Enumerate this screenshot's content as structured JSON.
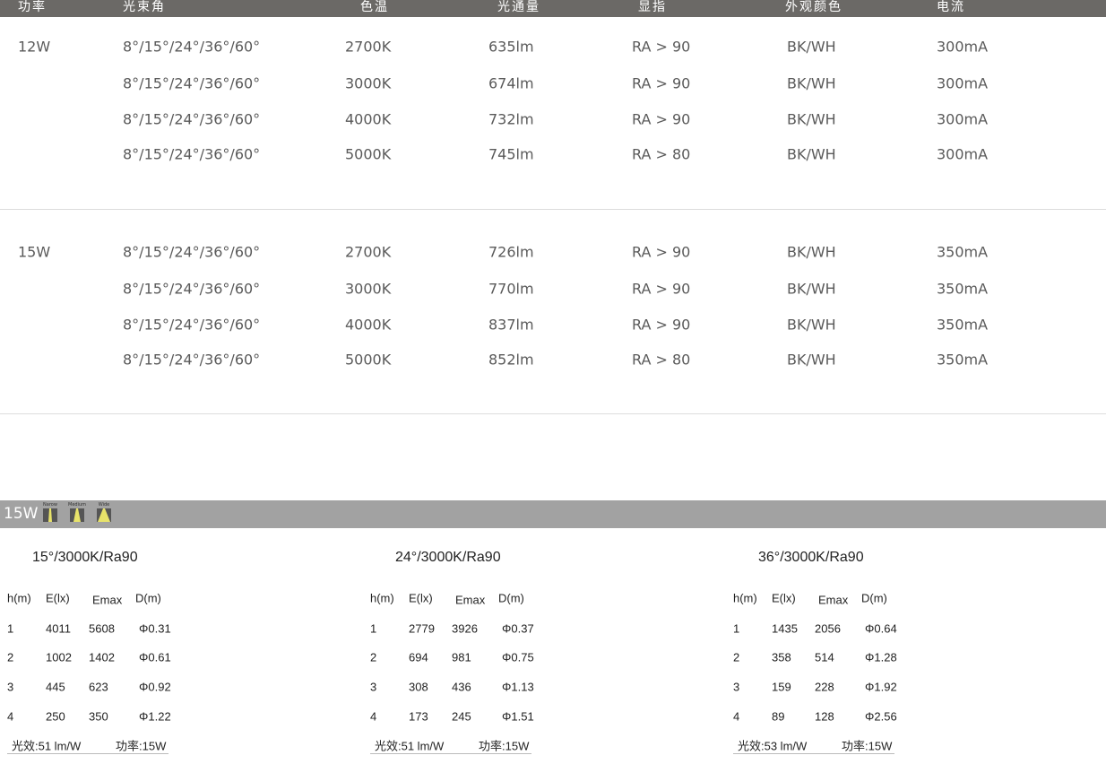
{
  "header": [
    "功率",
    "光束角",
    "色温",
    "光通量",
    "显指",
    "外观颜色",
    "电流"
  ],
  "groups": [
    {
      "power": "12W",
      "rows": [
        [
          "8°/15°/24°/36°/60°",
          "2700K",
          "635lm",
          "RA > 90",
          "BK/WH",
          "300mA"
        ],
        [
          "8°/15°/24°/36°/60°",
          "3000K",
          "674lm",
          "RA > 90",
          "BK/WH",
          "300mA"
        ],
        [
          "8°/15°/24°/36°/60°",
          "4000K",
          "732lm",
          "RA > 90",
          "BK/WH",
          "300mA"
        ],
        [
          "8°/15°/24°/36°/60°",
          "5000K",
          "745lm",
          "RA > 80",
          "BK/WH",
          "300mA"
        ]
      ]
    },
    {
      "power": "15W",
      "rows": [
        [
          "8°/15°/24°/36°/60°",
          "2700K",
          "726lm",
          "RA > 90",
          "BK/WH",
          "350mA"
        ],
        [
          "8°/15°/24°/36°/60°",
          "3000K",
          "770lm",
          "RA > 90",
          "BK/WH",
          "350mA"
        ],
        [
          "8°/15°/24°/36°/60°",
          "4000K",
          "837lm",
          "RA > 90",
          "BK/WH",
          "350mA"
        ],
        [
          "8°/15°/24°/36°/60°",
          "5000K",
          "852lm",
          "RA > 80",
          "BK/WH",
          "350mA"
        ]
      ]
    }
  ],
  "photometric": {
    "power": "15W",
    "beams": [
      "Narow",
      "Medium",
      "Wide"
    ],
    "beam_color": "#e8e36a",
    "columns": [
      "h(m)",
      "E(lx)",
      "Emax",
      "D(m)"
    ],
    "tables": [
      {
        "title": "15°/3000K/Ra90",
        "rows": [
          [
            "1",
            "4011",
            "5608",
            "Φ0.31"
          ],
          [
            "2",
            "1002",
            "1402",
            "Φ0.61"
          ],
          [
            "3",
            "445",
            "623",
            "Φ0.92"
          ],
          [
            "4",
            "250",
            "350",
            "Φ1.22"
          ]
        ],
        "efficacy": "光效:51 lm/W",
        "power": "功率:15W"
      },
      {
        "title": "24°/3000K/Ra90",
        "rows": [
          [
            "1",
            "2779",
            "3926",
            "Φ0.37"
          ],
          [
            "2",
            "694",
            "981",
            "Φ0.75"
          ],
          [
            "3",
            "308",
            "436",
            "Φ1.13"
          ],
          [
            "4",
            "173",
            "245",
            "Φ1.51"
          ]
        ],
        "efficacy": "光效:51 lm/W",
        "power": "功率:15W"
      },
      {
        "title": "36°/3000K/Ra90",
        "rows": [
          [
            "1",
            "1435",
            "2056",
            "Φ0.64"
          ],
          [
            "2",
            "358",
            "514",
            "Φ1.28"
          ],
          [
            "3",
            "159",
            "228",
            "Φ1.92"
          ],
          [
            "4",
            "89",
            "128",
            "Φ2.56"
          ]
        ],
        "efficacy": "光效:53 lm/W",
        "power": "功率:15W"
      }
    ]
  }
}
